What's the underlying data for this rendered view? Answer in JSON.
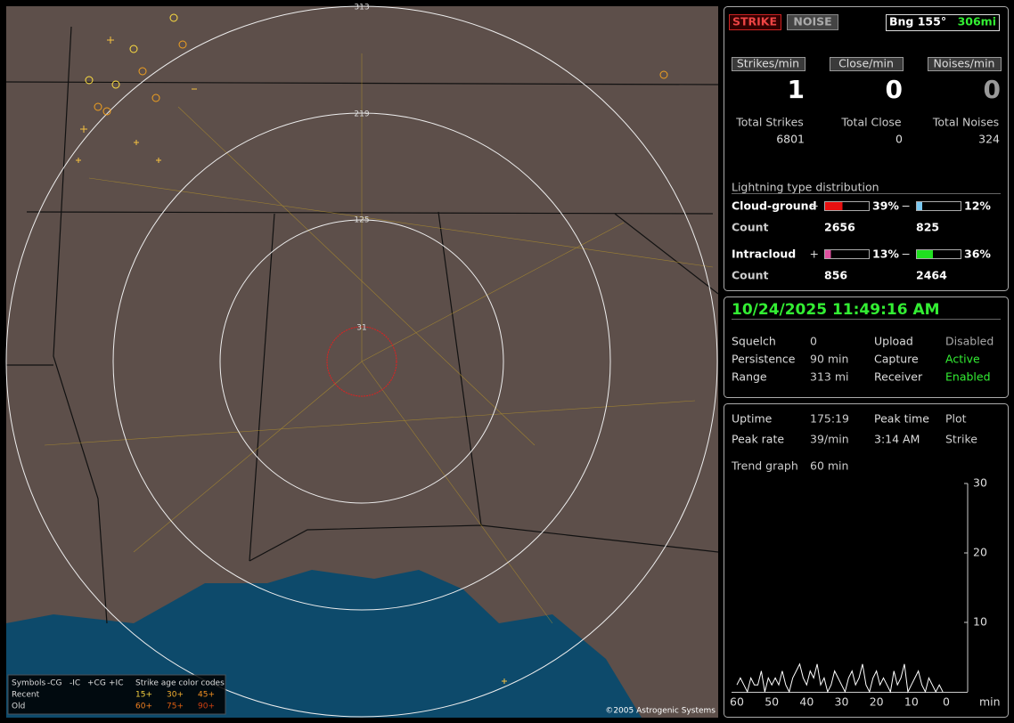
{
  "map": {
    "rings": [
      "313",
      "219",
      "125",
      "31"
    ],
    "copyright": "©2005 Astrogenic Systems",
    "legend": {
      "symbols": "Symbols",
      "cols": [
        "-CG",
        "-IC",
        "+CG",
        "+IC"
      ],
      "age_title": "Strike age color codes",
      "recent": "Recent",
      "old": "Old",
      "recent_ages": [
        "15+",
        "30+",
        "45+"
      ],
      "old_ages": [
        "60+",
        "75+",
        "90+"
      ]
    }
  },
  "header": {
    "strike": "STRIKE",
    "noise": "NOISE",
    "bearing": "Bng 155°",
    "range": "306mi"
  },
  "rates": {
    "labels": [
      "Strikes/min",
      "Close/min",
      "Noises/min"
    ],
    "values": [
      "1",
      "0",
      "0"
    ]
  },
  "totals": {
    "labels": [
      "Total Strikes",
      "Total Close",
      "Total Noises"
    ],
    "values": [
      "6801",
      "0",
      "324"
    ]
  },
  "distribution": {
    "title": "Lightning type distribution",
    "rows": [
      {
        "name": "Cloud-ground",
        "plus": {
          "value": 39,
          "label": "39%"
        },
        "minus": {
          "value": 12,
          "label": "12%"
        },
        "count_label": "Count",
        "counts": [
          "2656",
          "825"
        ]
      },
      {
        "name": "Intracloud",
        "plus": {
          "value": 13,
          "label": "13%"
        },
        "minus": {
          "value": 36,
          "label": "36%"
        },
        "count_label": "Count",
        "counts": [
          "856",
          "2464"
        ]
      }
    ],
    "signs": [
      "+",
      "−"
    ]
  },
  "clock": "10/24/2025 11:49:16 AM",
  "settings": [
    [
      "Squelch",
      "0",
      "Upload",
      "Disabled"
    ],
    [
      "Persistence",
      "90 min",
      "Capture",
      "Active"
    ],
    [
      "Range",
      "313 mi",
      "Receiver",
      "Enabled"
    ]
  ],
  "stats": [
    [
      "Uptime",
      "175:19",
      "Peak time",
      "Plot"
    ],
    [
      "Peak rate",
      "39/min",
      "3:14 AM",
      "Strike"
    ]
  ],
  "trend_label": [
    "Trend graph",
    "60 min"
  ],
  "trend": {
    "xlim": [
      60,
      0
    ],
    "ylim": [
      0,
      30
    ],
    "yticks": [
      10,
      20,
      30
    ],
    "xticks": [
      60,
      50,
      40,
      30,
      20,
      10,
      0
    ],
    "x_label": "min",
    "x": [
      60,
      59,
      58,
      57,
      56,
      55,
      54,
      53,
      52,
      51,
      50,
      49,
      48,
      47,
      46,
      45,
      44,
      43,
      42,
      41,
      40,
      39,
      38,
      37,
      36,
      35,
      34,
      33,
      32,
      31,
      30,
      29,
      28,
      27,
      26,
      25,
      24,
      23,
      22,
      21,
      20,
      19,
      18,
      17,
      16,
      15,
      14,
      13,
      12,
      11,
      10,
      9,
      8,
      7,
      6,
      5,
      4,
      3,
      2,
      1
    ],
    "values": [
      1,
      2,
      1,
      0,
      2,
      1,
      1,
      3,
      0,
      2,
      1,
      2,
      1,
      3,
      1,
      0,
      2,
      3,
      4,
      2,
      1,
      3,
      2,
      4,
      1,
      2,
      0,
      1,
      3,
      2,
      1,
      0,
      2,
      3,
      1,
      2,
      4,
      1,
      0,
      2,
      3,
      1,
      2,
      1,
      0,
      3,
      1,
      2,
      4,
      0,
      1,
      2,
      3,
      1,
      0,
      2,
      1,
      0,
      1,
      0
    ]
  }
}
